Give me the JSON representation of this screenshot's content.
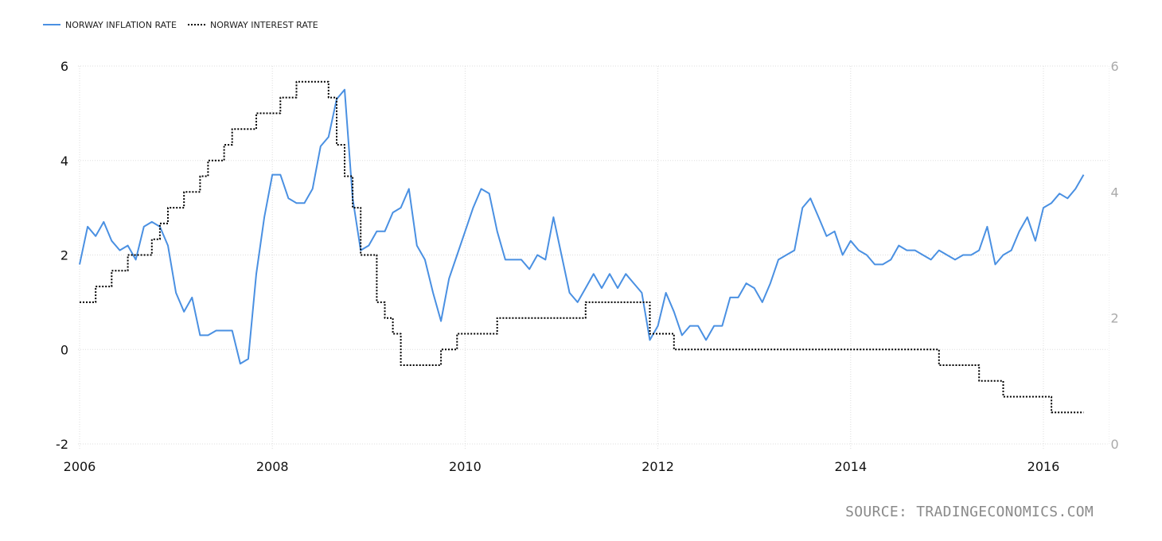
{
  "source_text": "SOURCE: TRADINGECONOMICS.COM",
  "chart_data": {
    "type": "line",
    "grid": true,
    "legend_position": "top-left",
    "x_range": [
      2006.0,
      2016.5
    ],
    "x_ticks": [
      2006,
      2008,
      2010,
      2012,
      2014,
      2016
    ],
    "y_left_range": [
      -2,
      6
    ],
    "y_left_ticks": [
      -2,
      0,
      2,
      4,
      6
    ],
    "y_right_range": [
      0,
      6
    ],
    "y_right_ticks": [
      0,
      2,
      4,
      6
    ],
    "series": [
      {
        "name": "NORWAY INFLATION RATE",
        "axis": "left",
        "color": "#4a90e2",
        "style": "solid",
        "x": [
          2006.0,
          2006.083,
          2006.167,
          2006.25,
          2006.333,
          2006.417,
          2006.5,
          2006.583,
          2006.667,
          2006.75,
          2006.833,
          2006.917,
          2007.0,
          2007.083,
          2007.167,
          2007.25,
          2007.333,
          2007.417,
          2007.5,
          2007.583,
          2007.667,
          2007.75,
          2007.833,
          2007.917,
          2008.0,
          2008.083,
          2008.167,
          2008.25,
          2008.333,
          2008.417,
          2008.5,
          2008.583,
          2008.667,
          2008.75,
          2008.833,
          2008.917,
          2009.0,
          2009.083,
          2009.167,
          2009.25,
          2009.333,
          2009.417,
          2009.5,
          2009.583,
          2009.667,
          2009.75,
          2009.833,
          2009.917,
          2010.0,
          2010.083,
          2010.167,
          2010.25,
          2010.333,
          2010.417,
          2010.5,
          2010.583,
          2010.667,
          2010.75,
          2010.833,
          2010.917,
          2011.0,
          2011.083,
          2011.167,
          2011.25,
          2011.333,
          2011.417,
          2011.5,
          2011.583,
          2011.667,
          2011.75,
          2011.833,
          2011.917,
          2012.0,
          2012.083,
          2012.167,
          2012.25,
          2012.333,
          2012.417,
          2012.5,
          2012.583,
          2012.667,
          2012.75,
          2012.833,
          2012.917,
          2013.0,
          2013.083,
          2013.167,
          2013.25,
          2013.333,
          2013.417,
          2013.5,
          2013.583,
          2013.667,
          2013.75,
          2013.833,
          2013.917,
          2014.0,
          2014.083,
          2014.167,
          2014.25,
          2014.333,
          2014.417,
          2014.5,
          2014.583,
          2014.667,
          2014.75,
          2014.833,
          2014.917,
          2015.0,
          2015.083,
          2015.167,
          2015.25,
          2015.333,
          2015.417,
          2015.5,
          2015.583,
          2015.667,
          2015.75,
          2015.833,
          2015.917,
          2016.0,
          2016.083,
          2016.167,
          2016.25,
          2016.333,
          2016.417
        ],
        "values": [
          1.8,
          2.6,
          2.4,
          2.7,
          2.3,
          2.1,
          2.2,
          1.9,
          2.6,
          2.7,
          2.6,
          2.2,
          1.2,
          0.8,
          1.1,
          0.3,
          0.3,
          0.4,
          0.4,
          0.4,
          -0.3,
          -0.2,
          1.6,
          2.8,
          3.7,
          3.7,
          3.2,
          3.1,
          3.1,
          3.4,
          4.3,
          4.5,
          5.3,
          5.5,
          3.2,
          2.1,
          2.2,
          2.5,
          2.5,
          2.9,
          3.0,
          3.4,
          2.2,
          1.9,
          1.2,
          0.6,
          1.5,
          2.0,
          2.5,
          3.0,
          3.4,
          3.3,
          2.5,
          1.9,
          1.9,
          1.9,
          1.7,
          2.0,
          1.9,
          2.8,
          2.0,
          1.2,
          1.0,
          1.3,
          1.6,
          1.3,
          1.6,
          1.3,
          1.6,
          1.4,
          1.2,
          0.2,
          0.5,
          1.2,
          0.8,
          0.3,
          0.5,
          0.5,
          0.2,
          0.5,
          0.5,
          1.1,
          1.1,
          1.4,
          1.3,
          1.0,
          1.4,
          1.9,
          2.0,
          2.1,
          3.0,
          3.2,
          2.8,
          2.4,
          2.5,
          2.0,
          2.3,
          2.1,
          2.0,
          1.8,
          1.8,
          1.9,
          2.2,
          2.1,
          2.1,
          2.0,
          1.9,
          2.1,
          2.0,
          1.9,
          2.0,
          2.0,
          2.1,
          2.6,
          1.8,
          2.0,
          2.1,
          2.5,
          2.8,
          2.3,
          3.0,
          3.1,
          3.3,
          3.2,
          3.4,
          3.7
        ]
      },
      {
        "name": "NORWAY INTEREST RATE",
        "axis": "right",
        "color": "#000000",
        "style": "dotted",
        "x": [
          2006.0,
          2006.083,
          2006.167,
          2006.25,
          2006.333,
          2006.417,
          2006.5,
          2006.583,
          2006.667,
          2006.75,
          2006.833,
          2006.917,
          2007.0,
          2007.083,
          2007.167,
          2007.25,
          2007.333,
          2007.417,
          2007.5,
          2007.583,
          2007.667,
          2007.75,
          2007.833,
          2007.917,
          2008.0,
          2008.083,
          2008.167,
          2008.25,
          2008.333,
          2008.417,
          2008.5,
          2008.583,
          2008.667,
          2008.75,
          2008.833,
          2008.917,
          2009.0,
          2009.083,
          2009.167,
          2009.25,
          2009.333,
          2009.417,
          2009.5,
          2009.583,
          2009.667,
          2009.75,
          2009.833,
          2009.917,
          2010.0,
          2010.083,
          2010.167,
          2010.25,
          2010.333,
          2010.417,
          2010.5,
          2010.583,
          2010.667,
          2010.75,
          2010.833,
          2010.917,
          2011.0,
          2011.083,
          2011.167,
          2011.25,
          2011.333,
          2011.417,
          2011.5,
          2011.583,
          2011.667,
          2011.75,
          2011.833,
          2011.917,
          2012.0,
          2012.083,
          2012.167,
          2012.25,
          2012.333,
          2012.417,
          2012.5,
          2012.583,
          2012.667,
          2012.75,
          2012.833,
          2012.917,
          2013.0,
          2013.083,
          2013.167,
          2013.25,
          2013.333,
          2013.417,
          2013.5,
          2013.583,
          2013.667,
          2013.75,
          2013.833,
          2013.917,
          2014.0,
          2014.083,
          2014.167,
          2014.25,
          2014.333,
          2014.417,
          2014.5,
          2014.583,
          2014.667,
          2014.75,
          2014.833,
          2014.917,
          2015.0,
          2015.083,
          2015.167,
          2015.25,
          2015.333,
          2015.417,
          2015.5,
          2015.583,
          2015.667,
          2015.75,
          2015.833,
          2015.917,
          2016.0,
          2016.083,
          2016.167,
          2016.25,
          2016.333,
          2016.417
        ],
        "values": [
          2.25,
          2.25,
          2.5,
          2.5,
          2.75,
          2.75,
          3.0,
          3.0,
          3.0,
          3.25,
          3.5,
          3.75,
          3.75,
          4.0,
          4.0,
          4.25,
          4.5,
          4.5,
          4.75,
          5.0,
          5.0,
          5.0,
          5.25,
          5.25,
          5.25,
          5.5,
          5.5,
          5.75,
          5.75,
          5.75,
          5.75,
          5.5,
          4.75,
          4.25,
          3.75,
          3.0,
          3.0,
          2.25,
          2.0,
          1.75,
          1.25,
          1.25,
          1.25,
          1.25,
          1.25,
          1.5,
          1.5,
          1.75,
          1.75,
          1.75,
          1.75,
          1.75,
          2.0,
          2.0,
          2.0,
          2.0,
          2.0,
          2.0,
          2.0,
          2.0,
          2.0,
          2.0,
          2.0,
          2.25,
          2.25,
          2.25,
          2.25,
          2.25,
          2.25,
          2.25,
          2.25,
          1.75,
          1.75,
          1.75,
          1.5,
          1.5,
          1.5,
          1.5,
          1.5,
          1.5,
          1.5,
          1.5,
          1.5,
          1.5,
          1.5,
          1.5,
          1.5,
          1.5,
          1.5,
          1.5,
          1.5,
          1.5,
          1.5,
          1.5,
          1.5,
          1.5,
          1.5,
          1.5,
          1.5,
          1.5,
          1.5,
          1.5,
          1.5,
          1.5,
          1.5,
          1.5,
          1.5,
          1.25,
          1.25,
          1.25,
          1.25,
          1.25,
          1.0,
          1.0,
          1.0,
          0.75,
          0.75,
          0.75,
          0.75,
          0.75,
          0.75,
          0.5,
          0.5,
          0.5,
          0.5,
          0.5
        ]
      }
    ]
  }
}
